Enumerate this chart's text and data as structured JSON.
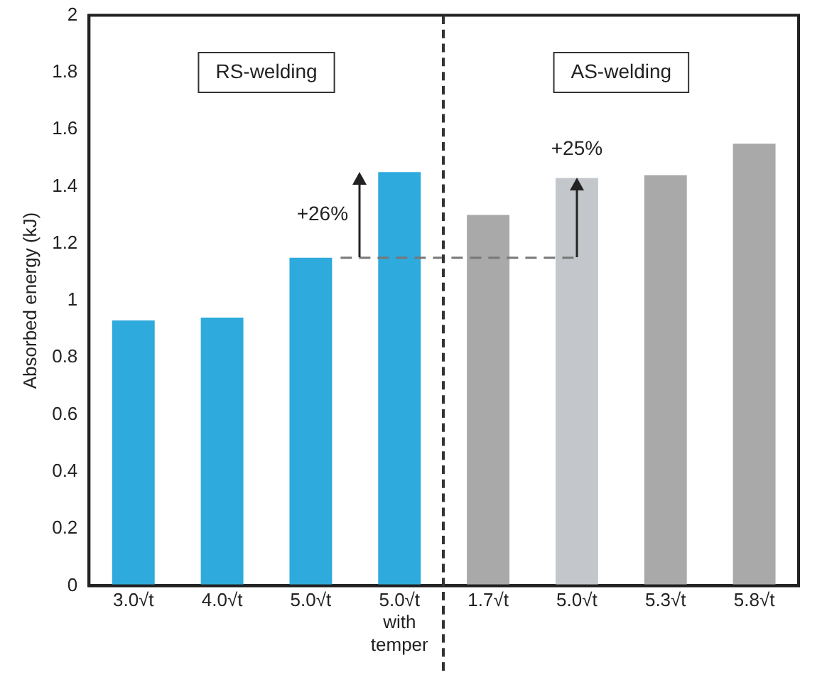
{
  "chart_data": {
    "type": "bar",
    "ylabel": "Absorbed energy (kJ)",
    "categories": [
      "3.0√t",
      "4.0√t",
      "5.0√t",
      "5.0√t with temper",
      "1.7√t",
      "5.0√t",
      "5.3√t",
      "5.8√t"
    ],
    "values": [
      0.93,
      0.94,
      1.15,
      1.45,
      1.3,
      1.43,
      1.44,
      1.55
    ],
    "colors": [
      "#2eaadc",
      "#2eaadc",
      "#2eaadc",
      "#2eaadc",
      "#a9a9a9",
      "#c3c7cc",
      "#a9a9a9",
      "#a9a9a9"
    ],
    "ylim": [
      0,
      2
    ],
    "yticks": [
      0,
      0.2,
      0.4,
      0.6,
      0.8,
      1,
      1.2,
      1.4,
      1.6,
      1.8,
      2
    ],
    "grid": false,
    "legend": false,
    "ref_lines": [
      {
        "axis": "y",
        "value": 1.15,
        "line_style": "dashed",
        "color": "#777777"
      }
    ],
    "annotations": [
      "RS-welding",
      "AS-welding",
      {
        "text": "+26%",
        "x": "5.0√t with temper",
        "y": 1.45
      },
      "+25%"
    ]
  }
}
